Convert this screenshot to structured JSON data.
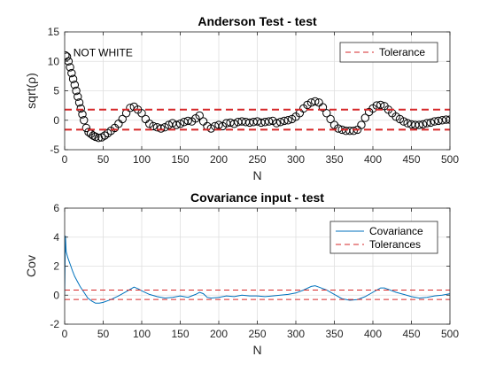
{
  "chart_data": [
    {
      "type": "scatter",
      "title": "Anderson Test - test",
      "xlabel": "N",
      "ylabel": "sqrt(ρ)",
      "xlim": [
        0,
        500
      ],
      "ylim": [
        -5,
        15
      ],
      "xticks": [
        "0",
        "50",
        "100",
        "150",
        "200",
        "250",
        "300",
        "350",
        "400",
        "450",
        "500"
      ],
      "yticks": [
        "-5",
        "0",
        "5",
        "10",
        "15"
      ],
      "grid": true,
      "legend_position": "top-right",
      "annotation": "NOT WHITE",
      "marker": "open-circle",
      "series": [
        {
          "name": "",
          "color": "#000000",
          "x": [
            1,
            3,
            5,
            7,
            9,
            11,
            13,
            15,
            17,
            19,
            21,
            23,
            25,
            28,
            31,
            34,
            37,
            40,
            44,
            48,
            52,
            56,
            60,
            65,
            70,
            75,
            80,
            85,
            90,
            95,
            100,
            105,
            110,
            115,
            120,
            125,
            130,
            135,
            140,
            145,
            150,
            155,
            160,
            165,
            170,
            175,
            180,
            185,
            190,
            195,
            200,
            205,
            210,
            215,
            220,
            225,
            230,
            235,
            240,
            245,
            250,
            255,
            260,
            265,
            270,
            275,
            280,
            285,
            290,
            295,
            300,
            305,
            310,
            315,
            320,
            325,
            330,
            335,
            340,
            345,
            350,
            355,
            360,
            365,
            370,
            375,
            380,
            385,
            390,
            395,
            400,
            405,
            410,
            415,
            420,
            425,
            430,
            435,
            440,
            445,
            450,
            455,
            460,
            465,
            470,
            475,
            480,
            485,
            490,
            495,
            500
          ],
          "y": [
            11,
            10.8,
            10,
            9,
            8,
            7,
            6,
            5,
            4,
            3,
            2,
            1,
            0,
            -1.3,
            -2,
            -2.3,
            -2.6,
            -2.8,
            -3,
            -2.9,
            -2.6,
            -2.2,
            -1.8,
            -1.3,
            -0.6,
            0.2,
            1.2,
            2.1,
            2.3,
            1.8,
            1.2,
            0.2,
            -0.6,
            -1,
            -1.2,
            -1.4,
            -1.2,
            -0.8,
            -0.5,
            -0.8,
            -0.6,
            -0.3,
            -0.1,
            -0.2,
            0.3,
            0.8,
            -0.2,
            -1,
            -1.4,
            -1,
            -0.8,
            -1,
            -0.5,
            -0.4,
            -0.6,
            -0.3,
            -0.2,
            -0.3,
            -0.4,
            -0.3,
            -0.2,
            -0.4,
            -0.3,
            -0.2,
            -0.1,
            -0.5,
            -0.3,
            -0.1,
            0,
            0.2,
            0.6,
            1.2,
            2,
            2.6,
            3,
            3.2,
            3,
            2.2,
            1.2,
            0.2,
            -0.8,
            -1.4,
            -1.6,
            -1.8,
            -1.8,
            -1.8,
            -1.6,
            -0.8,
            0.4,
            1.4,
            2,
            2.5,
            2.6,
            2.4,
            1.8,
            1.2,
            0.6,
            0.2,
            -0.2,
            -0.5,
            -0.7,
            -0.8,
            -0.8,
            -0.7,
            -0.5,
            -0.4,
            -0.2,
            -0.1,
            0,
            0.1,
            0.1
          ]
        },
        {
          "name": "Tolerance",
          "color": "#d62728",
          "style": "dashed",
          "y_constant": [
            1.8,
            -1.6
          ]
        }
      ]
    },
    {
      "type": "line",
      "title": "Covariance input - test",
      "xlabel": "N",
      "ylabel": "Cov",
      "xlim": [
        0,
        500
      ],
      "ylim": [
        -2,
        6
      ],
      "xticks": [
        "0",
        "50",
        "100",
        "150",
        "200",
        "250",
        "300",
        "350",
        "400",
        "450",
        "500"
      ],
      "yticks": [
        "-2",
        "0",
        "2",
        "4",
        "6"
      ],
      "grid": true,
      "legend_position": "top-right",
      "series": [
        {
          "name": "Covariance",
          "color": "#0072bd",
          "x": [
            0,
            1,
            2,
            4,
            6,
            8,
            10,
            13,
            16,
            20,
            25,
            30,
            35,
            40,
            45,
            50,
            60,
            70,
            80,
            85,
            90,
            95,
            100,
            110,
            120,
            130,
            140,
            150,
            160,
            170,
            175,
            180,
            185,
            190,
            200,
            210,
            220,
            230,
            240,
            250,
            260,
            270,
            280,
            290,
            300,
            310,
            320,
            325,
            330,
            340,
            350,
            360,
            370,
            380,
            390,
            400,
            410,
            415,
            420,
            430,
            440,
            450,
            460,
            470,
            480,
            490,
            500
          ],
          "y": [
            0,
            4.1,
            3,
            2.6,
            2.3,
            2,
            1.7,
            1.3,
            1,
            0.6,
            0.2,
            -0.2,
            -0.4,
            -0.55,
            -0.55,
            -0.5,
            -0.3,
            -0.05,
            0.25,
            0.4,
            0.55,
            0.45,
            0.3,
            0.05,
            -0.1,
            -0.2,
            -0.15,
            -0.05,
            -0.15,
            0.05,
            0.2,
            0.1,
            -0.15,
            -0.2,
            -0.15,
            -0.05,
            -0.1,
            0,
            -0.05,
            -0.05,
            -0.1,
            -0.05,
            0,
            0.05,
            0.15,
            0.35,
            0.6,
            0.65,
            0.55,
            0.35,
            0.05,
            -0.25,
            -0.35,
            -0.3,
            -0.1,
            0.2,
            0.5,
            0.5,
            0.4,
            0.2,
            0.05,
            -0.1,
            -0.2,
            -0.15,
            -0.05,
            0,
            0.1
          ]
        },
        {
          "name": "Tolerances",
          "color": "#d62728",
          "style": "dashed",
          "y_constant": [
            0.35,
            -0.3
          ]
        }
      ]
    }
  ]
}
